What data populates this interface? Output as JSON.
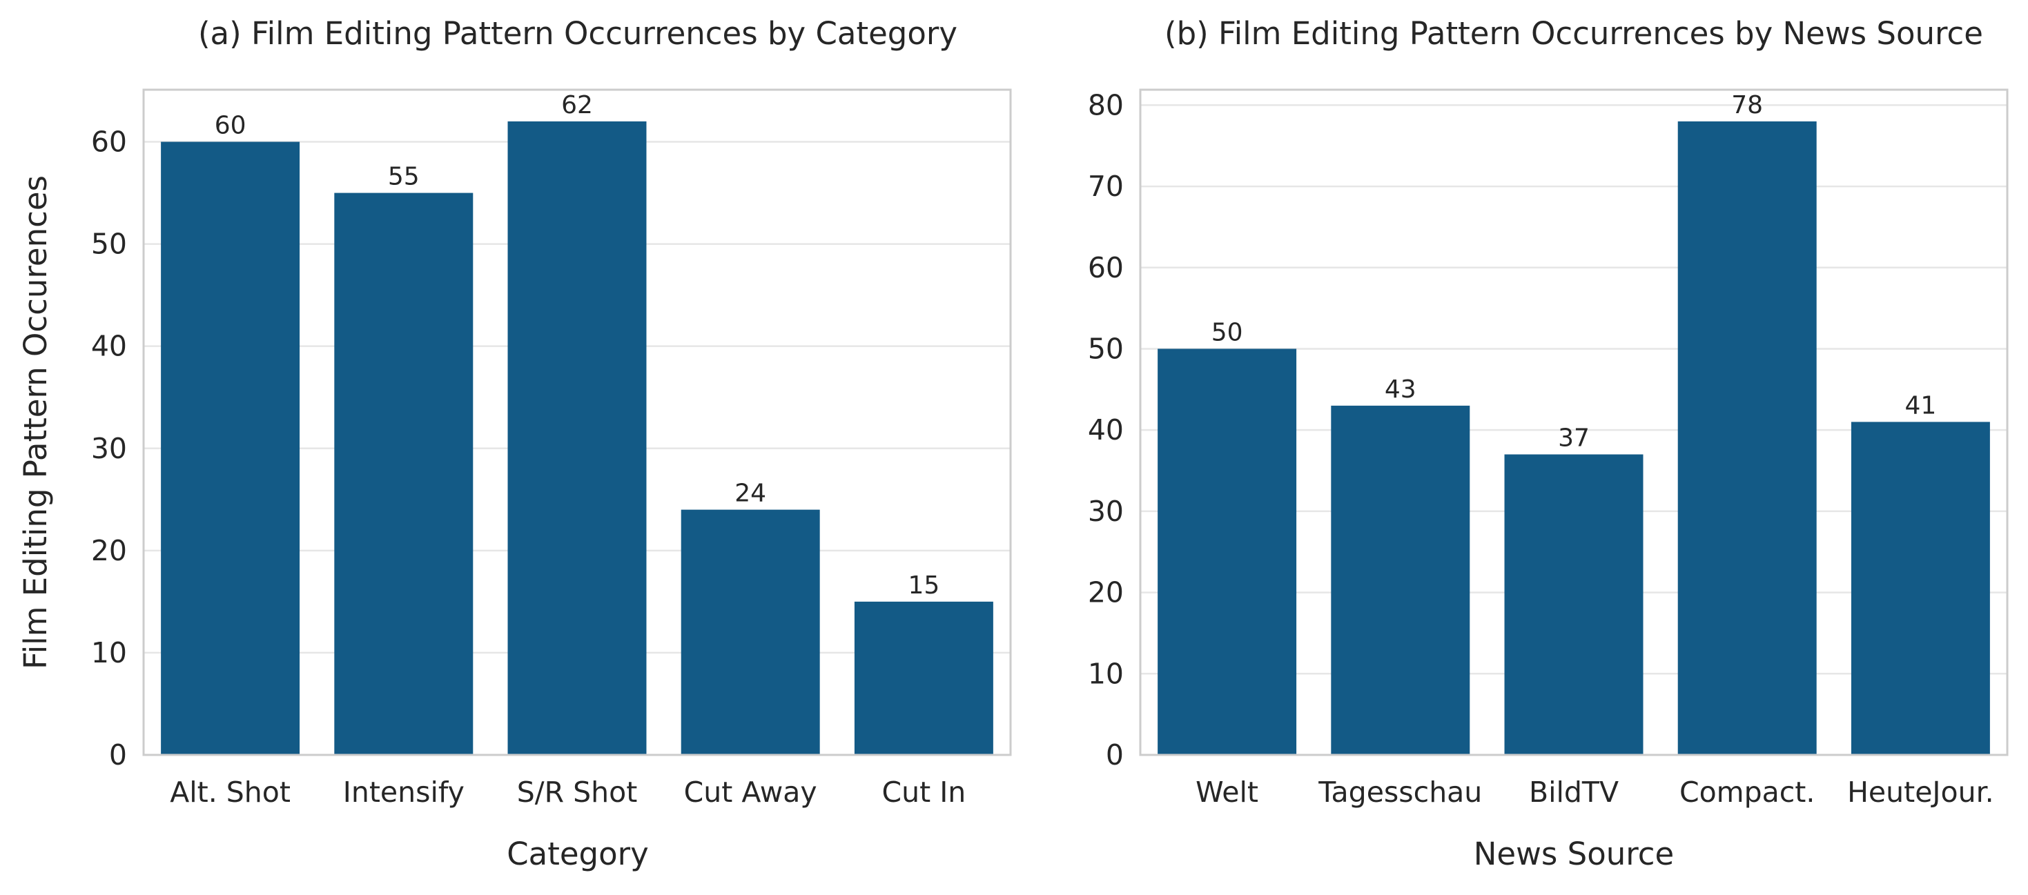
{
  "chart_data": [
    {
      "type": "bar",
      "title": "(a) Film Editing Pattern Occurrences by Category",
      "xlabel": "Category",
      "ylabel": "Film Editing Pattern Occurences",
      "categories": [
        "Alt. Shot",
        "Intensify",
        "S/R Shot",
        "Cut Away",
        "Cut In"
      ],
      "values": [
        60,
        55,
        62,
        24,
        15
      ],
      "ylim": [
        0,
        65.1
      ],
      "yticks": [
        "0",
        "10",
        "20",
        "30",
        "40",
        "50",
        "60"
      ],
      "grid": true,
      "bar_color": "#135a86"
    },
    {
      "type": "bar",
      "title": "(b) Film Editing Pattern Occurrences by News Source",
      "xlabel": "News Source",
      "ylabel": "",
      "categories": [
        "Welt",
        "Tagesschau",
        "BildTV",
        "Compact.",
        "HeuteJour."
      ],
      "values": [
        50,
        43,
        37,
        78,
        41
      ],
      "ylim": [
        0,
        81.9
      ],
      "yticks": [
        "0",
        "10",
        "20",
        "30",
        "40",
        "50",
        "60",
        "70",
        "80"
      ],
      "grid": true,
      "bar_color": "#135a86"
    }
  ]
}
